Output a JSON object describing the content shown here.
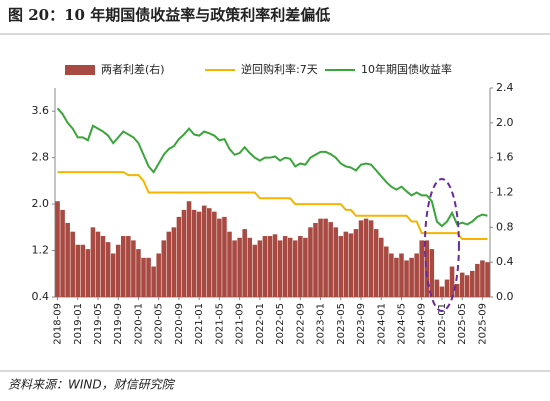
{
  "chart_data": {
    "type": "combo",
    "title": "图 20：10 年期国债收益率与政策利率利差偏低",
    "source": "资料来源：WIND，财信研究院",
    "categories": [
      "2018-09",
      null,
      null,
      null,
      "2019-01",
      null,
      null,
      null,
      "2019-05",
      null,
      null,
      null,
      "2019-09",
      null,
      null,
      null,
      "2020-01",
      null,
      null,
      null,
      "2020-05",
      null,
      null,
      null,
      "2020-09",
      null,
      null,
      null,
      "2021-01",
      null,
      null,
      null,
      "2021-05",
      null,
      null,
      null,
      "2021-09",
      null,
      null,
      null,
      "2022-01",
      null,
      null,
      null,
      "2022-05",
      null,
      null,
      null,
      "2022-09",
      null,
      null,
      null,
      "2023-01",
      null,
      null,
      null,
      "2023-05",
      null,
      null,
      null,
      "2023-09",
      null,
      null,
      null,
      "2024-01",
      null,
      null,
      null,
      "2024-05",
      null,
      null,
      null,
      "2024-09",
      null,
      null,
      null,
      "2025-01",
      null,
      null,
      null,
      "2025-05",
      null,
      null,
      null,
      "2025-09",
      null
    ],
    "ylim": [
      0.4,
      4.0
    ],
    "yticks": [
      0.4,
      1.2,
      {
        "value": 2,
        "label": "2.0"
      },
      2.8,
      3.6
    ],
    "y2lim": [
      0,
      2.4
    ],
    "y2ticks": [
      {
        "value": 0,
        "label": "0.0"
      },
      0.4,
      0.8,
      1.2,
      1.6,
      {
        "value": 2,
        "label": "2.0"
      },
      2.4
    ],
    "series": [
      {
        "name": "两者利差(右)",
        "kind": "bar",
        "axis": "y2",
        "color": "#a84a42",
        "values": [
          1.1,
          1.0,
          0.85,
          0.75,
          0.6,
          0.6,
          0.55,
          0.8,
          0.75,
          0.7,
          0.63,
          0.5,
          0.6,
          0.7,
          0.7,
          0.65,
          0.55,
          0.45,
          0.45,
          0.35,
          0.5,
          0.65,
          0.75,
          0.8,
          0.92,
          1.0,
          1.1,
          1.0,
          0.98,
          1.05,
          1.02,
          0.98,
          0.9,
          0.92,
          0.75,
          0.65,
          0.68,
          0.78,
          0.68,
          0.6,
          0.65,
          0.7,
          0.7,
          0.72,
          0.65,
          0.7,
          0.68,
          0.65,
          0.7,
          0.68,
          0.8,
          0.85,
          0.9,
          0.9,
          0.86,
          0.8,
          0.7,
          0.75,
          0.73,
          0.78,
          0.88,
          0.9,
          0.88,
          0.78,
          0.68,
          0.58,
          0.5,
          0.45,
          0.5,
          0.42,
          0.45,
          0.5,
          0.65,
          0.65,
          0.55,
          0.2,
          0.12,
          0.2,
          0.35,
          0.15,
          0.28,
          0.25,
          0.3,
          0.38,
          0.42,
          0.4
        ]
      },
      {
        "name": "逆回购利率:7天",
        "kind": "line",
        "color": "#f5b400",
        "values": [
          2.55,
          2.55,
          2.55,
          2.55,
          2.55,
          2.55,
          2.55,
          2.55,
          2.55,
          2.55,
          2.55,
          2.55,
          2.55,
          2.55,
          2.5,
          2.5,
          2.5,
          2.4,
          2.2,
          2.2,
          2.2,
          2.2,
          2.2,
          2.2,
          2.2,
          2.2,
          2.2,
          2.2,
          2.2,
          2.2,
          2.2,
          2.2,
          2.2,
          2.2,
          2.2,
          2.2,
          2.2,
          2.2,
          2.2,
          2.2,
          2.1,
          2.1,
          2.1,
          2.1,
          2.1,
          2.1,
          2.1,
          2.0,
          2.0,
          2.0,
          2.0,
          2.0,
          2.0,
          2.0,
          2.0,
          2.0,
          2.0,
          1.9,
          1.9,
          1.8,
          1.8,
          1.8,
          1.8,
          1.8,
          1.8,
          1.8,
          1.8,
          1.8,
          1.8,
          1.8,
          1.7,
          1.7,
          1.5,
          1.5,
          1.5,
          1.5,
          1.5,
          1.5,
          1.5,
          1.5,
          1.4,
          1.4,
          1.4,
          1.4,
          1.4,
          1.4
        ]
      },
      {
        "name": "10年期国债收益率",
        "kind": "line",
        "color": "#3aa53a",
        "values": [
          3.65,
          3.55,
          3.4,
          3.3,
          3.15,
          3.15,
          3.1,
          3.35,
          3.3,
          3.25,
          3.18,
          3.05,
          3.15,
          3.25,
          3.2,
          3.15,
          3.05,
          2.85,
          2.65,
          2.55,
          2.7,
          2.85,
          2.95,
          3.0,
          3.12,
          3.2,
          3.3,
          3.2,
          3.18,
          3.25,
          3.22,
          3.18,
          3.1,
          3.12,
          2.95,
          2.85,
          2.88,
          2.98,
          2.88,
          2.8,
          2.75,
          2.8,
          2.8,
          2.82,
          2.75,
          2.8,
          2.78,
          2.65,
          2.7,
          2.68,
          2.8,
          2.85,
          2.9,
          2.9,
          2.86,
          2.8,
          2.7,
          2.65,
          2.63,
          2.58,
          2.68,
          2.7,
          2.68,
          2.58,
          2.48,
          2.38,
          2.3,
          2.25,
          2.3,
          2.22,
          2.15,
          2.2,
          2.15,
          2.15,
          2.05,
          1.7,
          1.62,
          1.7,
          1.85,
          1.65,
          1.68,
          1.65,
          1.7,
          1.78,
          1.82,
          1.8
        ]
      }
    ]
  }
}
